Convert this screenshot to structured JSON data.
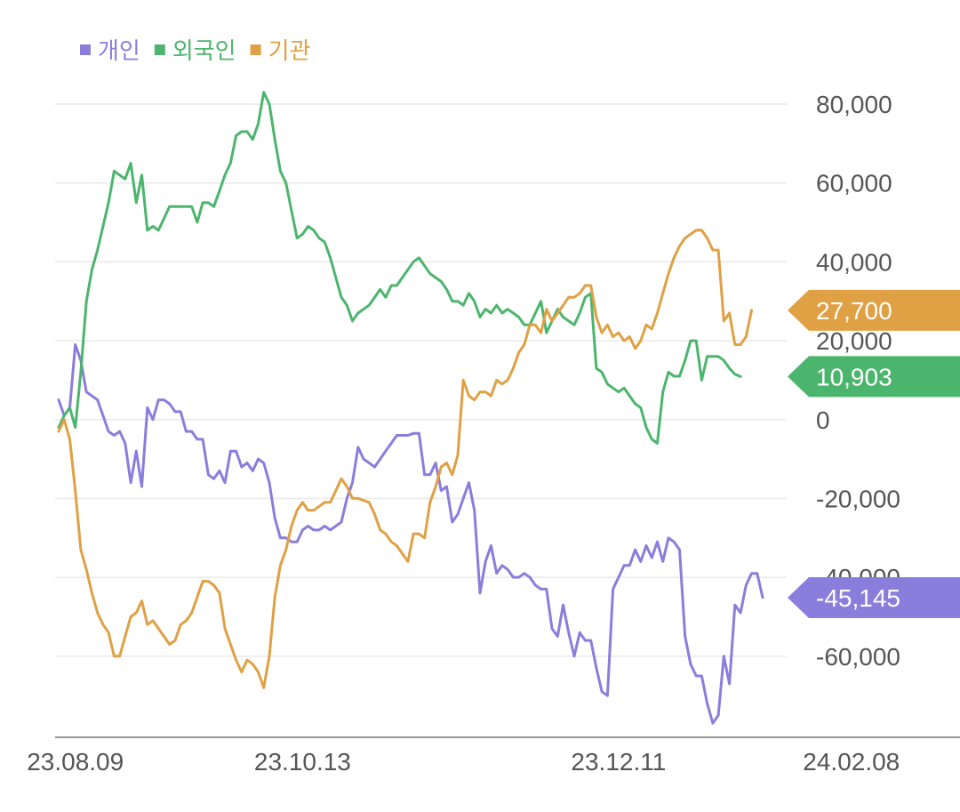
{
  "chart_data": {
    "type": "line",
    "title": "",
    "xlabel": "",
    "ylabel": "",
    "ylim": [
      -80000,
      80000
    ],
    "y_ticks": [
      80000,
      60000,
      40000,
      20000,
      0,
      -20000,
      -40000,
      -60000
    ],
    "y_tick_labels": [
      "80,000",
      "60,000",
      "40,000",
      "20,000",
      "0",
      "-20,000",
      "-40,000",
      "-60,000"
    ],
    "x_tick_labels": [
      "23.08.09",
      "23.10.13",
      "23.12.11",
      "24.02.08"
    ],
    "x_tick_index": [
      3,
      44,
      101,
      143
    ],
    "grid": true,
    "legend_position": "top-left",
    "series": [
      {
        "name": "개인",
        "color": "#8b7ddc",
        "last_label": "-45,145",
        "values": [
          5000,
          1000,
          3000,
          19000,
          15000,
          7000,
          6000,
          5000,
          1000,
          -3000,
          -4000,
          -3000,
          -6000,
          -16000,
          -8000,
          -17000,
          3000,
          0,
          5000,
          5000,
          4000,
          2000,
          2000,
          -3000,
          -3000,
          -5000,
          -5000,
          -14000,
          -15000,
          -13000,
          -16000,
          -8000,
          -8000,
          -12000,
          -11000,
          -13000,
          -10000,
          -11000,
          -16000,
          -25000,
          -30000,
          -30000,
          -31000,
          -31000,
          -28000,
          -27000,
          -28000,
          -28000,
          -27000,
          -28000,
          -27000,
          -26000,
          -20000,
          -16000,
          -7000,
          -10000,
          -11000,
          -12000,
          -10000,
          -8000,
          -6000,
          -4000,
          -4000,
          -4000,
          -3500,
          -3500,
          -14000,
          -14000,
          -11000,
          -18000,
          -17000,
          -26000,
          -24000,
          -20000,
          -16000,
          -23000,
          -44000,
          -36000,
          -32000,
          -39000,
          -37000,
          -38000,
          -40000,
          -40000,
          -39000,
          -40000,
          -42000,
          -43000,
          -43000,
          -53000,
          -55000,
          -47000,
          -54000,
          -60000,
          -54000,
          -56000,
          -56000,
          -63000,
          -69000,
          -70000,
          -43000,
          -40000,
          -37000,
          -37000,
          -33000,
          -36000,
          -32000,
          -35000,
          -31000,
          -36000,
          -30000,
          -31000,
          -33000,
          -55000,
          -62000,
          -65000,
          -65000,
          -72000,
          -77000,
          -75000,
          -60000,
          -67000,
          -47000,
          -49000,
          -42000,
          -39000,
          -39000,
          -45145
        ]
      },
      {
        "name": "외국인",
        "color": "#4cb56d",
        "last_label": "10,903",
        "values": [
          -2000,
          1000,
          3000,
          -2000,
          12000,
          30000,
          38000,
          43000,
          49000,
          55000,
          63000,
          62000,
          61000,
          65000,
          55000,
          62000,
          48000,
          49000,
          48000,
          51000,
          54000,
          54000,
          54000,
          54000,
          54000,
          50000,
          55000,
          55000,
          54000,
          58000,
          62000,
          65000,
          72000,
          73000,
          73000,
          71000,
          75000,
          83000,
          80000,
          71000,
          63000,
          60000,
          53000,
          46000,
          47000,
          49000,
          48000,
          46000,
          45000,
          41000,
          36000,
          31000,
          29000,
          25000,
          27000,
          28000,
          29000,
          31000,
          33000,
          31000,
          34000,
          34000,
          36000,
          38000,
          40000,
          41000,
          39000,
          37000,
          36000,
          35000,
          33000,
          30000,
          30000,
          29000,
          32000,
          30000,
          26000,
          28000,
          27000,
          29000,
          27000,
          28000,
          27000,
          26000,
          24000,
          24000,
          27000,
          30000,
          22000,
          25000,
          28000,
          26000,
          25000,
          24000,
          27000,
          31000,
          32000,
          13000,
          12000,
          9000,
          8000,
          7000,
          8000,
          6000,
          4000,
          3000,
          -2000,
          -5000,
          -6000,
          7000,
          12000,
          11000,
          11000,
          15000,
          20000,
          20000,
          10000,
          16000,
          16000,
          16000,
          15000,
          13000,
          11500,
          10903
        ]
      },
      {
        "name": "기관",
        "color": "#e0a044",
        "last_label": "27,700",
        "values": [
          -3000,
          0,
          -5000,
          -18000,
          -33000,
          -38000,
          -44000,
          -49000,
          -52000,
          -54000,
          -60000,
          -60000,
          -55000,
          -50000,
          -49000,
          -46000,
          -52000,
          -51000,
          -53000,
          -55000,
          -57000,
          -56000,
          -52000,
          -51000,
          -49000,
          -45000,
          -41000,
          -41000,
          -42000,
          -44000,
          -53000,
          -57000,
          -61000,
          -64000,
          -61000,
          -62000,
          -64000,
          -68000,
          -60000,
          -45000,
          -37000,
          -33000,
          -27000,
          -23000,
          -21000,
          -23000,
          -23000,
          -22000,
          -21000,
          -21000,
          -18000,
          -15000,
          -17000,
          -20000,
          -20000,
          -20500,
          -21000,
          -24000,
          -28000,
          -29000,
          -31000,
          -32000,
          -34000,
          -36000,
          -29000,
          -29000,
          -30000,
          -21000,
          -17000,
          -12000,
          -11000,
          -14000,
          -9000,
          10000,
          6000,
          5000,
          7000,
          7000,
          6000,
          10000,
          9000,
          10000,
          13000,
          17000,
          19000,
          24000,
          24000,
          22000,
          28000,
          25000,
          27000,
          29000,
          31000,
          31000,
          32000,
          34000,
          34000,
          26000,
          22000,
          24000,
          21000,
          22000,
          20000,
          21000,
          18000,
          20000,
          24000,
          23000,
          27000,
          32000,
          37000,
          41000,
          44000,
          46000,
          47000,
          48000,
          48000,
          46000,
          43000,
          43000,
          25000,
          27000,
          19000,
          19000,
          21000,
          27700
        ]
      }
    ]
  }
}
